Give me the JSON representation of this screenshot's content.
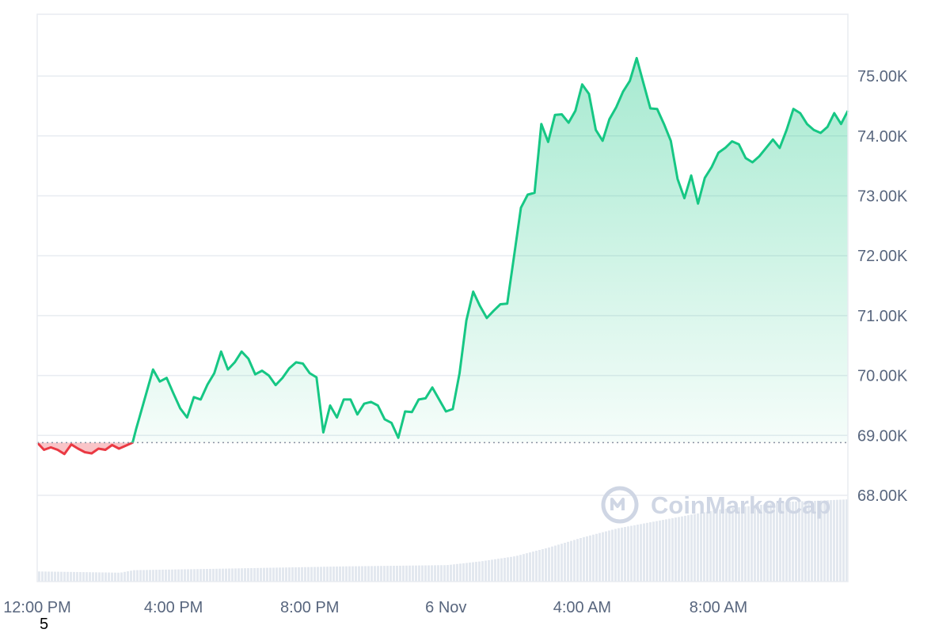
{
  "chart_data": {
    "type": "area",
    "baseline": 68880,
    "ylim": [
      66600,
      75000
    ],
    "y_ticks": [
      68000,
      69000,
      70000,
      71000,
      72000,
      73000,
      74000,
      75000
    ],
    "y_tick_labels": [
      "68.00K",
      "69.00K",
      "70.00K",
      "71.00K",
      "72.00K",
      "73.00K",
      "74.00K",
      "75.00K"
    ],
    "x_ticks": [
      0,
      4,
      8,
      12,
      16,
      20
    ],
    "x_tick_labels": [
      "12:00 PM",
      "4:00 PM",
      "8:00 PM",
      "6 Nov",
      "4:00 AM",
      "8:00 AM"
    ],
    "xlim": [
      0,
      23.8
    ],
    "grid": true,
    "colors": {
      "up": "#16c784",
      "down": "#ea3943",
      "grid": "#e8ecf1",
      "volume": "#e3e8ef",
      "axis_text": "#58667e"
    },
    "series": [
      {
        "x": [
          0,
          0.2,
          0.4,
          0.6,
          0.8,
          1.0,
          1.2,
          1.4,
          1.6,
          1.8,
          2.0,
          2.2,
          2.4,
          2.6,
          2.8,
          2.9,
          3.0,
          3.2,
          3.4,
          3.6,
          3.8,
          4.0,
          4.2,
          4.4,
          4.6,
          4.8,
          5.0,
          5.2,
          5.4,
          5.6,
          5.8,
          6.0,
          6.2,
          6.4,
          6.6,
          6.8,
          7.0,
          7.2,
          7.4,
          7.6,
          7.8,
          8.0,
          8.2,
          8.4,
          8.6,
          8.8,
          9.0,
          9.2,
          9.4,
          9.6,
          9.8,
          10.0,
          10.2,
          10.4,
          10.6,
          10.8,
          11.0,
          11.2,
          11.4,
          11.6,
          11.8,
          12.0,
          12.2,
          12.4,
          12.6,
          12.8,
          13.0,
          13.2,
          13.4,
          13.6,
          13.8,
          14.0,
          14.2,
          14.4,
          14.6,
          14.8,
          15.0,
          15.2,
          15.4,
          15.6,
          15.8,
          16.0,
          16.2,
          16.4,
          16.6,
          16.8,
          17.0,
          17.2,
          17.4,
          17.6,
          17.8,
          18.0,
          18.2,
          18.4,
          18.6,
          18.8,
          19.0,
          19.2,
          19.4,
          19.6,
          19.8,
          20.0,
          20.2,
          20.4,
          20.6,
          20.8,
          21.0,
          21.2,
          21.4,
          21.6,
          21.8,
          22.0,
          22.2,
          22.4,
          22.6,
          22.8,
          23.0,
          23.2,
          23.4,
          23.6,
          23.8
        ],
        "values": [
          68880,
          68760,
          68800,
          68760,
          68690,
          68850,
          68780,
          68720,
          68700,
          68780,
          68760,
          68840,
          68780,
          68830,
          68880,
          69100,
          69300,
          69700,
          70100,
          69900,
          69960,
          69700,
          69450,
          69300,
          69640,
          69600,
          69850,
          70040,
          70400,
          70100,
          70220,
          70400,
          70280,
          70020,
          70080,
          70000,
          69840,
          69960,
          70120,
          70220,
          70200,
          70040,
          69970,
          69050,
          69500,
          69300,
          69600,
          69600,
          69350,
          69530,
          69560,
          69500,
          69270,
          69210,
          68960,
          69400,
          69390,
          69600,
          69620,
          69800,
          69600,
          69400,
          69440,
          70040,
          70920,
          71400,
          71160,
          70960,
          71080,
          71190,
          71200,
          72000,
          72800,
          73020,
          73050,
          74200,
          73900,
          74350,
          74360,
          74220,
          74420,
          74860,
          74700,
          74100,
          73920,
          74280,
          74480,
          74740,
          74920,
          75300,
          74880,
          74460,
          74450,
          74200,
          73920,
          73280,
          72960,
          73340,
          72870,
          73300,
          73480,
          73720,
          73800,
          73910,
          73860,
          73630,
          73560,
          73660,
          73800,
          73940,
          73800,
          74100,
          74450,
          74380,
          74200,
          74100,
          74050,
          74150,
          74380,
          74200,
          74420
        ]
      }
    ],
    "volume": [
      [
        0,
        0.08
      ],
      [
        2.4,
        0.07
      ],
      [
        2.8,
        0.09
      ],
      [
        5.0,
        0.1
      ],
      [
        9.0,
        0.12
      ],
      [
        12.0,
        0.13
      ],
      [
        13.0,
        0.16
      ],
      [
        14.0,
        0.2
      ],
      [
        15.0,
        0.27
      ],
      [
        16.0,
        0.35
      ],
      [
        17.0,
        0.42
      ],
      [
        18.0,
        0.47
      ],
      [
        19.0,
        0.52
      ],
      [
        20.0,
        0.57
      ],
      [
        21.0,
        0.6
      ],
      [
        22.0,
        0.63
      ],
      [
        23.0,
        0.64
      ],
      [
        23.8,
        0.65
      ]
    ],
    "watermark": "CoinMarketCap",
    "footnote": "5"
  }
}
